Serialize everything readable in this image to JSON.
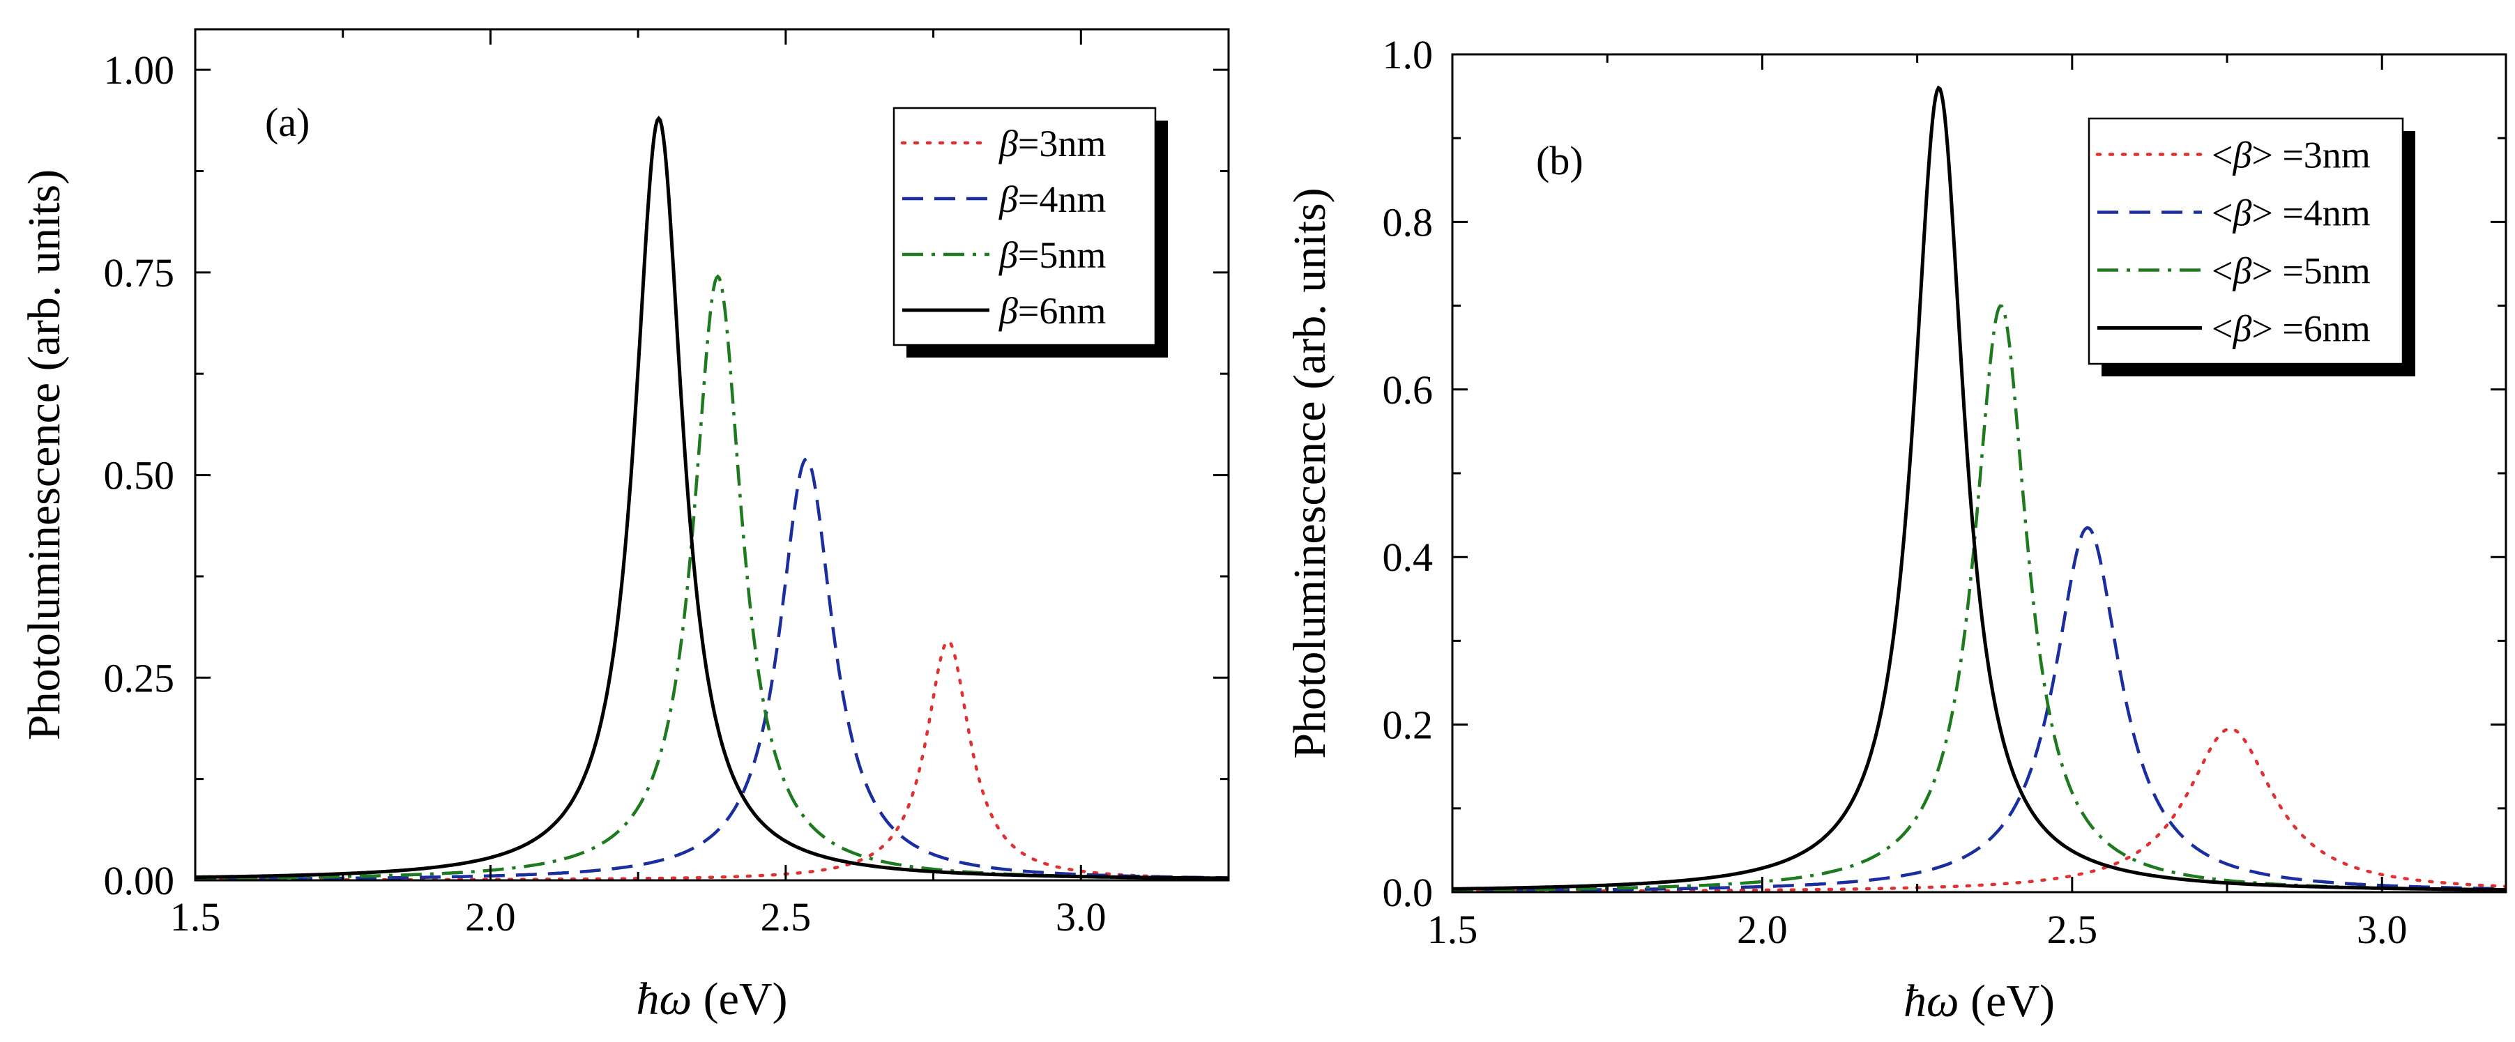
{
  "chart_data": [
    {
      "type": "line",
      "panel_label": "(a)",
      "xlabel": "ħω (eV)",
      "ylabel": "Photoluminescence (arb. units)",
      "xlim": [
        1.5,
        3.25
      ],
      "ylim": [
        0.0,
        1.05
      ],
      "xticks": [
        1.5,
        2.0,
        2.5,
        3.0
      ],
      "xtick_labels": [
        "1.5",
        "2.0",
        "2.5",
        "3.0"
      ],
      "yticks": [
        0.0,
        0.25,
        0.5,
        0.75,
        1.0
      ],
      "ytick_labels": [
        "0.00",
        "0.25",
        "0.50",
        "0.75",
        "1.00"
      ],
      "legend": "top-right",
      "series": [
        {
          "name": "β=3nm",
          "prefix": "",
          "symbol": "β",
          "suffix": "=3nm",
          "color": "#e03030",
          "dash": "dot",
          "peak_x": 2.775,
          "peak_y": 0.295,
          "width": 0.045,
          "base": 0.0
        },
        {
          "name": "β=4nm",
          "prefix": "",
          "symbol": "β",
          "suffix": "=4nm",
          "color": "#1a2ea0",
          "dash": "dash",
          "peak_x": 2.535,
          "peak_y": 0.52,
          "width": 0.055,
          "base": 0.0
        },
        {
          "name": "β=5nm",
          "prefix": "",
          "symbol": "β",
          "suffix": "=5nm",
          "color": "#1e7a1e",
          "dash": "dashdot",
          "peak_x": 2.385,
          "peak_y": 0.745,
          "width": 0.05,
          "base": 0.0
        },
        {
          "name": "β=6nm",
          "prefix": "",
          "symbol": "β",
          "suffix": "=6nm",
          "color": "#000000",
          "dash": "solid",
          "peak_x": 2.285,
          "peak_y": 0.94,
          "width": 0.05,
          "base": 0.0
        }
      ]
    },
    {
      "type": "line",
      "panel_label": "(b)",
      "xlabel": "ħω (eV)",
      "ylabel": "Photoluminescence (arb. units)",
      "xlim": [
        1.5,
        3.2
      ],
      "ylim": [
        0.0,
        1.0
      ],
      "xticks": [
        1.5,
        2.0,
        2.5,
        3.0
      ],
      "xtick_labels": [
        "1.5",
        "2.0",
        "2.5",
        "3.0"
      ],
      "yticks": [
        0.0,
        0.2,
        0.4,
        0.6,
        0.8,
        1.0
      ],
      "ytick_labels": [
        "0.0",
        "0.2",
        "0.4",
        "0.6",
        "0.8",
        "1.0"
      ],
      "legend": "top-right",
      "series": [
        {
          "name": "<β> =3nm",
          "prefix": "<",
          "symbol": "β",
          "suffix": "> =3nm",
          "color": "#e03030",
          "dash": "dot",
          "peak_x": 2.755,
          "peak_y": 0.195,
          "width": 0.085,
          "base": 0.0
        },
        {
          "name": "<β> =4nm",
          "prefix": "<",
          "symbol": "β",
          "suffix": "> =4nm",
          "color": "#1a2ea0",
          "dash": "dash",
          "peak_x": 2.525,
          "peak_y": 0.435,
          "width": 0.065,
          "base": 0.0
        },
        {
          "name": "<β> =5nm",
          "prefix": "<",
          "symbol": "β",
          "suffix": "> =5nm",
          "color": "#1e7a1e",
          "dash": "dashdot",
          "peak_x": 2.385,
          "peak_y": 0.7,
          "width": 0.052,
          "base": 0.0
        },
        {
          "name": "<β> =6nm",
          "prefix": "<",
          "symbol": "β",
          "suffix": "> =6nm",
          "color": "#000000",
          "dash": "solid",
          "peak_x": 2.285,
          "peak_y": 0.96,
          "width": 0.05,
          "base": 0.0
        }
      ]
    }
  ]
}
